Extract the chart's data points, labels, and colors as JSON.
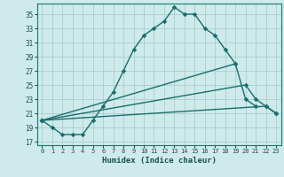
{
  "xlabel": "Humidex (Indice chaleur)",
  "bg_color": "#ceeaea",
  "grid_color": "#aacece",
  "line_color": "#1a6e6e",
  "xlim": [
    -0.5,
    23.5
  ],
  "ylim": [
    16.5,
    36.5
  ],
  "xticks": [
    0,
    1,
    2,
    3,
    4,
    5,
    6,
    7,
    8,
    9,
    10,
    11,
    12,
    13,
    14,
    15,
    16,
    17,
    18,
    19,
    20,
    21,
    22,
    23
  ],
  "yticks": [
    17,
    19,
    21,
    23,
    25,
    27,
    29,
    31,
    33,
    35
  ],
  "series1_x": [
    0,
    1,
    2,
    3,
    4,
    5,
    6,
    7,
    8,
    9,
    10,
    11,
    12,
    13,
    14,
    15,
    16,
    17,
    18,
    19
  ],
  "series1_y": [
    20,
    19,
    18,
    18,
    18,
    20,
    22,
    24,
    27,
    30,
    32,
    33,
    34,
    36,
    35,
    35,
    33,
    32,
    30,
    28
  ],
  "series2_x": [
    0,
    19,
    20,
    21
  ],
  "series2_y": [
    20,
    28,
    23,
    22
  ],
  "series3_x": [
    0,
    20,
    21,
    22,
    23
  ],
  "series3_y": [
    20,
    25,
    23,
    22,
    21
  ],
  "series4_x": [
    0,
    22,
    23
  ],
  "series4_y": [
    20,
    22,
    21
  ]
}
